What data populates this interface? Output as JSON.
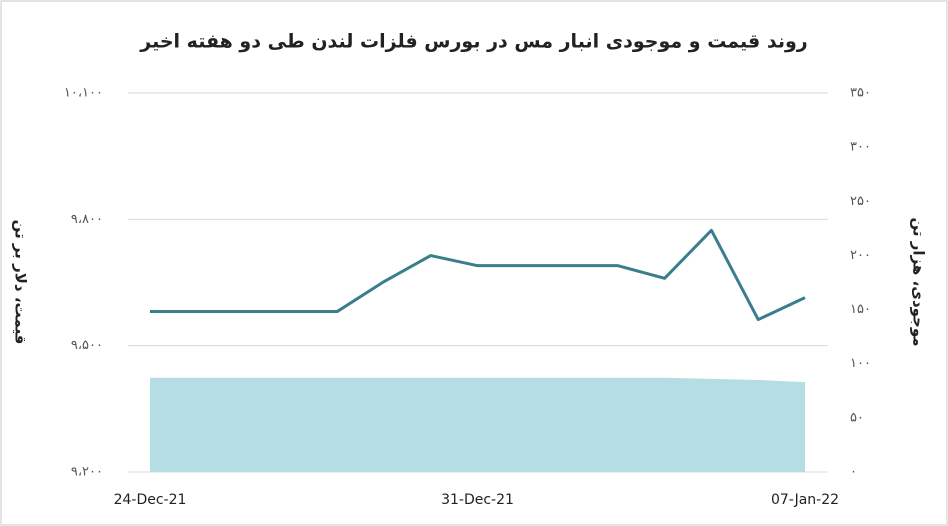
{
  "chart_data": {
    "type": "line-area",
    "title": "روند قیمت و موجودی انبار مس در بورس فلزات لندن طی دو هفته اخیر",
    "ylabel": "قیمت، دلار بر تن",
    "y2label": "موجودی، هزار تن",
    "categories": [
      "24-Dec-21",
      null,
      null,
      null,
      null,
      null,
      null,
      "31-Dec-21",
      null,
      null,
      null,
      null,
      null,
      null,
      "07-Jan-22"
    ],
    "series": [
      {
        "type": "area",
        "axis": "y2",
        "color": "#b5dde4",
        "values": [
          87,
          87,
          87,
          87,
          87,
          87,
          87,
          87,
          87,
          87,
          87,
          87,
          86,
          85,
          83
        ]
      },
      {
        "type": "line",
        "axis": "y",
        "color": "#3a7d8c",
        "values": [
          9581,
          9581,
          9581,
          9581,
          9581,
          9652,
          9714,
          9690,
          9690,
          9690,
          9690,
          9660,
          9774,
          9562,
          9614
        ]
      }
    ],
    "ylim": [
      9200,
      10100
    ],
    "yticks": [
      {
        "value": 9200,
        "label": "۹،۲۰۰"
      },
      {
        "value": 9500,
        "label": "۹،۵۰۰"
      },
      {
        "value": 9800,
        "label": "۹،۸۰۰"
      },
      {
        "value": 10100,
        "label": "۱۰،۱۰۰"
      }
    ],
    "y2lim": [
      0,
      350
    ],
    "y2ticks": [
      {
        "value": 0,
        "label": "۰"
      },
      {
        "value": 50,
        "label": "۵۰"
      },
      {
        "value": 100,
        "label": "۱۰۰"
      },
      {
        "value": 150,
        "label": "۱۵۰"
      },
      {
        "value": 200,
        "label": "۲۰۰"
      },
      {
        "value": 250,
        "label": "۲۵۰"
      },
      {
        "value": 300,
        "label": "۳۰۰"
      },
      {
        "value": 350,
        "label": "۳۵۰"
      }
    ],
    "grid": true
  }
}
